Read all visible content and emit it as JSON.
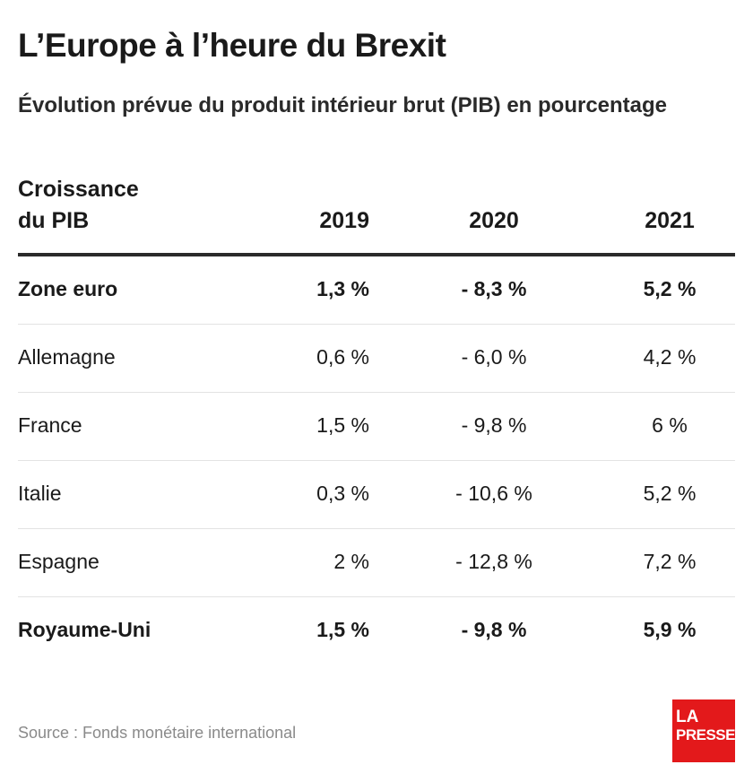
{
  "title": "L’Europe à l’heure du Brexit",
  "subtitle": "Évolution prévue du produit intérieur brut (PIB) en pourcentage",
  "source": "Source : Fonds monétaire international",
  "brand": {
    "line1": "LA",
    "line2": "PRESSE",
    "color": "#e3191b"
  },
  "chart_data": {
    "type": "table",
    "row_header_label": "Croissance du PIB",
    "row_header_lines": [
      "Croissance",
      "du PIB"
    ],
    "columns": [
      "2019",
      "2020",
      "2021"
    ],
    "rows": [
      {
        "name": "Zone euro",
        "bold": true,
        "values": [
          1.3,
          -8.3,
          5.2
        ],
        "display": [
          "1,3 %",
          "- 8,3 %",
          "5,2 %"
        ]
      },
      {
        "name": "Allemagne",
        "bold": false,
        "values": [
          0.6,
          -6.0,
          4.2
        ],
        "display": [
          "0,6 %",
          "- 6,0 %",
          "4,2 %"
        ]
      },
      {
        "name": "France",
        "bold": false,
        "values": [
          1.5,
          -9.8,
          6
        ],
        "display": [
          "1,5 %",
          "- 9,8 %",
          "6 %"
        ]
      },
      {
        "name": "Italie",
        "bold": false,
        "values": [
          0.3,
          -10.6,
          5.2
        ],
        "display": [
          "0,3 %",
          "- 10,6 %",
          "5,2 %"
        ]
      },
      {
        "name": "Espagne",
        "bold": false,
        "values": [
          2,
          -12.8,
          7.2
        ],
        "display": [
          "2 %",
          "- 12,8 %",
          "7,2 %"
        ]
      },
      {
        "name": "Royaume-Uni",
        "bold": true,
        "values": [
          1.5,
          -9.8,
          5.9
        ],
        "display": [
          "1,5 %",
          "- 9,8 %",
          "5,9 %"
        ]
      }
    ]
  }
}
